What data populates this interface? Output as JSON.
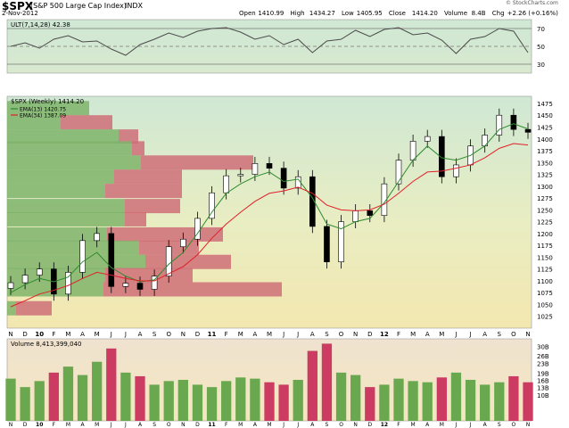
{
  "header": {
    "ticker": "$SPX",
    "name": "(S&P 500 Large Cap Index)",
    "exchange": "INDX",
    "date": "2-Nov-2012",
    "source": "© StockCharts.com",
    "quote": [
      {
        "label": "Open",
        "value": "1410.99"
      },
      {
        "label": "High",
        "value": "1434.27"
      },
      {
        "label": "Low",
        "value": "1405.95"
      },
      {
        "label": "Close",
        "value": "1414.20"
      },
      {
        "label": "Volume",
        "value": "8.4B"
      },
      {
        "label": "Chg",
        "value": "+2.26 (+0.16%)"
      }
    ]
  },
  "colors": {
    "up_volume": "#6aa84f",
    "down_volume": "#cc3b62",
    "ema13": "#2e8b2e",
    "ema34": "#e0202a",
    "bg_top": "#cfe8d4",
    "bg_bottom": "#f3e7b0",
    "vbp_up": "#7fb46b",
    "vbp_down": "#cf6f78"
  },
  "chart_data": [
    {
      "type": "line",
      "panel": "indicator",
      "title": "ULT(7,14,28) 42.38",
      "ylim": [
        20,
        80
      ],
      "yticks": [
        30,
        50,
        70
      ],
      "reference_lines": [
        30,
        50,
        70
      ],
      "x": [
        "N",
        "D",
        "10",
        "F",
        "M",
        "A",
        "M",
        "J",
        "J",
        "A",
        "S",
        "O",
        "N",
        "D",
        "11",
        "F",
        "M",
        "A",
        "M",
        "J",
        "J",
        "A",
        "S",
        "O",
        "N",
        "D",
        "12",
        "F",
        "M",
        "A",
        "M",
        "J",
        "J",
        "A",
        "S",
        "O",
        "N"
      ],
      "series": [
        {
          "name": "ULT(7,14,28)",
          "values": [
            50,
            54,
            48,
            58,
            62,
            55,
            56,
            47,
            40,
            52,
            58,
            65,
            60,
            67,
            70,
            71,
            66,
            58,
            62,
            52,
            58,
            43,
            56,
            58,
            68,
            61,
            69,
            71,
            63,
            65,
            57,
            42,
            58,
            61,
            70,
            67,
            43
          ]
        }
      ]
    },
    {
      "type": "candlestick",
      "panel": "price",
      "title": "$SPX (Weekly) 1414.20",
      "ylim": [
        1000,
        1490
      ],
      "yticks": [
        1025,
        1050,
        1075,
        1100,
        1125,
        1150,
        1175,
        1200,
        1225,
        1250,
        1275,
        1300,
        1325,
        1350,
        1375,
        1400,
        1425,
        1450,
        1475
      ],
      "x": [
        "N",
        "D",
        "10",
        "F",
        "M",
        "A",
        "M",
        "J",
        "J",
        "A",
        "S",
        "O",
        "N",
        "D",
        "11",
        "F",
        "M",
        "A",
        "M",
        "J",
        "J",
        "A",
        "S",
        "O",
        "N",
        "D",
        "12",
        "F",
        "M",
        "A",
        "M",
        "J",
        "J",
        "A",
        "S",
        "O",
        "N"
      ],
      "series": [
        {
          "name": "Close",
          "values": [
            1096,
            1112,
            1125,
            1072,
            1118,
            1185,
            1200,
            1088,
            1095,
            1082,
            1110,
            1172,
            1188,
            1232,
            1286,
            1322,
            1325,
            1348,
            1338,
            1296,
            1320,
            1215,
            1140,
            1225,
            1248,
            1238,
            1305,
            1355,
            1395,
            1405,
            1320,
            1345,
            1385,
            1408,
            1450,
            1420,
            1414
          ]
        },
        {
          "name": "EMA(13) 1420.75",
          "values": [
            1075,
            1092,
            1105,
            1098,
            1108,
            1140,
            1160,
            1128,
            1110,
            1098,
            1102,
            1135,
            1160,
            1200,
            1245,
            1285,
            1305,
            1320,
            1330,
            1310,
            1315,
            1275,
            1220,
            1210,
            1225,
            1232,
            1265,
            1310,
            1355,
            1385,
            1360,
            1355,
            1365,
            1385,
            1420,
            1432,
            1421
          ]
        },
        {
          "name": "EMA(34) 1387.09",
          "values": [
            1045,
            1058,
            1072,
            1080,
            1090,
            1105,
            1118,
            1112,
            1105,
            1100,
            1100,
            1115,
            1130,
            1155,
            1190,
            1220,
            1245,
            1268,
            1285,
            1290,
            1298,
            1285,
            1260,
            1250,
            1248,
            1250,
            1262,
            1285,
            1310,
            1330,
            1332,
            1338,
            1345,
            1360,
            1380,
            1390,
            1387
          ]
        }
      ],
      "volume_by_price": [
        {
          "price": 1465,
          "up": 92,
          "down": 0
        },
        {
          "price": 1435,
          "up": 60,
          "down": 58
        },
        {
          "price": 1405,
          "up": 125,
          "down": 22
        },
        {
          "price": 1380,
          "up": 140,
          "down": 14
        },
        {
          "price": 1350,
          "up": 150,
          "down": 126
        },
        {
          "price": 1320,
          "up": 120,
          "down": 76
        },
        {
          "price": 1290,
          "up": 110,
          "down": 86
        },
        {
          "price": 1258,
          "up": 132,
          "down": 62
        },
        {
          "price": 1230,
          "up": 132,
          "down": 24
        },
        {
          "price": 1198,
          "up": 112,
          "down": 130
        },
        {
          "price": 1170,
          "up": 148,
          "down": 67
        },
        {
          "price": 1140,
          "up": 155,
          "down": 96
        },
        {
          "price": 1112,
          "up": 110,
          "down": 98
        },
        {
          "price": 1082,
          "up": 108,
          "down": 200
        },
        {
          "price": 1042,
          "up": 10,
          "down": 40
        }
      ]
    },
    {
      "type": "bar",
      "panel": "volume",
      "title": "Volume 8,413,399,040",
      "ylim": [
        0,
        340
      ],
      "yticks": [
        108,
        138,
        168,
        198,
        239,
        269,
        309
      ],
      "tick_labels": [
        "10B",
        "13B",
        "16B",
        "19B",
        "23B",
        "26B",
        "30B"
      ],
      "x": [
        "N",
        "D",
        "10",
        "F",
        "M",
        "A",
        "M",
        "J",
        "J",
        "A",
        "S",
        "O",
        "N",
        "D",
        "11",
        "F",
        "M",
        "A",
        "M",
        "J",
        "J",
        "A",
        "S",
        "O",
        "N",
        "D",
        "12",
        "F",
        "M",
        "A",
        "M",
        "J",
        "J",
        "A",
        "S",
        "O",
        "N"
      ],
      "series": [
        {
          "name": "Volume",
          "values": [
            175,
            140,
            165,
            200,
            225,
            190,
            245,
            300,
            200,
            185,
            150,
            165,
            170,
            150,
            140,
            165,
            180,
            175,
            160,
            150,
            170,
            290,
            320,
            200,
            190,
            140,
            150,
            175,
            165,
            160,
            180,
            200,
            170,
            150,
            160,
            185,
            160
          ]
        }
      ]
    }
  ]
}
